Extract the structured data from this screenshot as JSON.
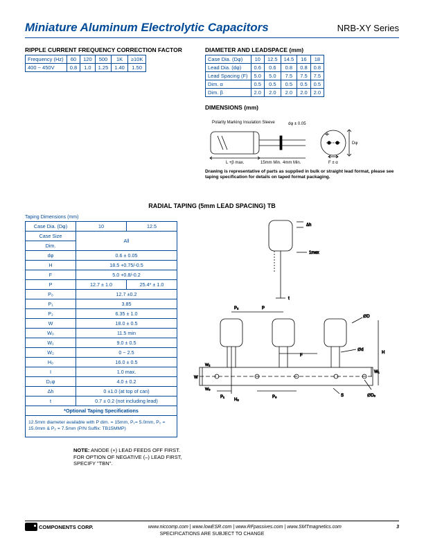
{
  "header": {
    "title": "Miniature Aluminum Electrolytic Capacitors",
    "series": "NRB-XY Series"
  },
  "ripple": {
    "label": "RIPPLE CURRENT FREQUENCY CORRECTION FACTOR",
    "headers": [
      "Frequency (Hz)",
      "60",
      "120",
      "500",
      "1K",
      "≥10K"
    ],
    "row": [
      "400 ~ 450V",
      "0.8",
      "1.0",
      "1.25",
      "1.40",
      "1.50"
    ]
  },
  "diameter": {
    "label": "DIAMETER AND LEADSPACE (mm)",
    "rows": [
      [
        "Case Dia. (Dφ)",
        "10",
        "12.5",
        "14.5",
        "16",
        "18"
      ],
      [
        "Lead Dia. (dφ)",
        "0.6",
        "0.6",
        "0.8",
        "0.8",
        "0.8"
      ],
      [
        "Lead Spacing (F)",
        "5.0",
        "5.0",
        "7.5",
        "7.5",
        "7.5"
      ],
      [
        "Dim. α",
        "0.5",
        "0.5",
        "0.5",
        "0.5",
        "0.5"
      ],
      [
        "Dim. β",
        "2.0",
        "2.0",
        "2.0",
        "2.0",
        "2.0"
      ]
    ]
  },
  "dimensions": {
    "label": "DIMENSIONS (mm)",
    "caption": "Drawing is representative of parts as supplied in bulk or straight lead format, please see taping specification for details on taped format packaging.",
    "annot": {
      "polarity": "Polarity Marking",
      "sleeve": "Insulation Sleeve",
      "dtol": "dφ ± 0.05",
      "lmax": "L +β max.",
      "leadmin": "15mm Min.",
      "fourmin": "4mm Min.",
      "falpha": "F ± α"
    }
  },
  "mid_title": "RADIAL TAPING (5mm LEAD SPACING) TB",
  "taping": {
    "caption": "Taping Dimensions (mm)",
    "head": [
      "Case Dia. (Dφ)",
      "10",
      "12.5"
    ],
    "rows": [
      {
        "label": "Case Size",
        "val": "All",
        "span": 2,
        "type": "rowspan"
      },
      {
        "label": "Dim.",
        "val": "",
        "merge": true
      },
      {
        "label": "dφ",
        "val": "0.6 ± 0.05",
        "span": 2
      },
      {
        "label": "H",
        "val": "18.5 +0.75/-0.5",
        "span": 2
      },
      {
        "label": "F",
        "val": "5.0 +0.8/-0.2",
        "span": 2
      },
      {
        "label": "P",
        "val": [
          "12.7 ± 1.0",
          "25.4* ± 1.0"
        ]
      },
      {
        "label": "P₀",
        "val": "12.7 ±0.2",
        "span": 2
      },
      {
        "label": "P₁",
        "val": "3.85",
        "span": 2
      },
      {
        "label": "P₂",
        "val": "6.35 ± 1.0",
        "span": 2
      },
      {
        "label": "W",
        "val": "18.0 ± 0.5",
        "span": 2
      },
      {
        "label": "W₀",
        "val": "11.5 min",
        "span": 2
      },
      {
        "label": "W₁",
        "val": "9.0 ± 0.5",
        "span": 2
      },
      {
        "label": "W₂",
        "val": "0 ~ 2.5",
        "span": 2
      },
      {
        "label": "H₀",
        "val": "16.0 ± 0.5",
        "span": 2
      },
      {
        "label": "I",
        "val": "1.0 max.",
        "span": 2
      },
      {
        "label": "D₀φ",
        "val": "4.0 ± 0.2",
        "span": 2
      },
      {
        "label": "Δh",
        "val": "0 ±1.0 (at top of can)",
        "span": 2
      },
      {
        "label": "t",
        "val": "0.7 ± 0.2 (not including lead)",
        "span": 2
      }
    ],
    "optional": "*Optional Taping Specifications",
    "extra": "12.5mm diameter available with P dim. = 15mm, P₁= 5.0mm, P₀ = 15.0mm & P₂ = 7.5mm (P/N Suffix: TB15MMP)"
  },
  "note": {
    "bold": "NOTE:",
    "text1": " ANODE (+) LEAD FEEDS OFF FIRST.",
    "text2": "FOR OPTION OF NEGATIVE (–) LEAD FIRST,",
    "text3": "SPECIFY \"TBN\"."
  },
  "tape_diagram": {
    "labels": [
      "Δh",
      "1max",
      "t",
      "P₂",
      "P",
      "∅D",
      "F",
      "∅d",
      "H",
      "W₁",
      "W",
      "W₂",
      "W₀",
      "P₁",
      "H₀",
      "P₀",
      "S",
      "∅D₀"
    ]
  },
  "footer": {
    "company": "COMPONENTS CORP.",
    "links": "www.niccomp.com  |  www.lowESR.com  |  www.RFpassives.com  |  www.SMTmagnetics.com",
    "sub": "SPECIFICATIONS ARE SUBJECT TO CHANGE",
    "page": "3"
  }
}
